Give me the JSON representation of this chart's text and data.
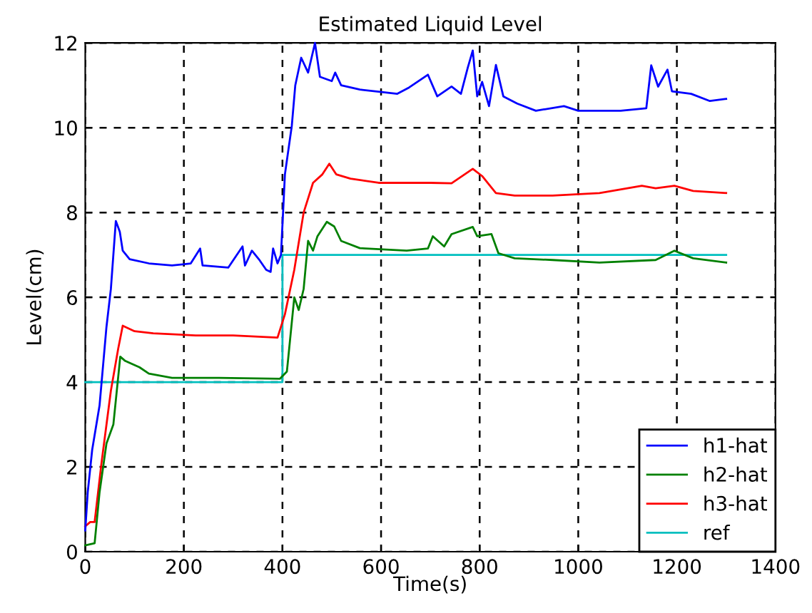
{
  "chart_data": {
    "type": "line",
    "title": "Estimated Liquid Level",
    "xlabel": "Time(s)",
    "ylabel": "Level(cm)",
    "xlim": [
      0,
      1400
    ],
    "ylim": [
      0,
      12
    ],
    "xticks": [
      0,
      200,
      400,
      600,
      800,
      1000,
      1200,
      1400
    ],
    "yticks": [
      0,
      2,
      4,
      6,
      8,
      10,
      12
    ],
    "grid": true,
    "legend": "bottom right",
    "line_style": "solid",
    "series": [
      {
        "name": "h1-hat",
        "color": "#0000ff",
        "x": [
          0,
          5,
          14,
          29,
          43,
          52,
          62,
          70,
          76,
          90,
          129,
          176,
          214,
          233,
          238,
          290,
          319,
          324,
          338,
          352,
          367,
          376,
          381,
          390,
          397,
          405,
          419,
          426,
          438,
          452,
          466,
          476,
          500,
          507,
          519,
          557,
          595,
          633,
          657,
          695,
          714,
          743,
          762,
          776,
          786,
          795,
          805,
          819,
          833,
          848,
          876,
          914,
          971,
          1000,
          1086,
          1138,
          1148,
          1162,
          1181,
          1190,
          1229,
          1267,
          1300
        ],
        "values": [
          0.5,
          1.4,
          2.4,
          3.45,
          5.3,
          6.2,
          7.8,
          7.55,
          7.1,
          6.9,
          6.8,
          6.75,
          6.8,
          7.15,
          6.75,
          6.7,
          7.2,
          6.75,
          7.1,
          6.9,
          6.65,
          6.6,
          7.15,
          6.8,
          7.0,
          8.9,
          10.05,
          11.0,
          11.65,
          11.3,
          12.0,
          11.2,
          11.1,
          11.3,
          11.0,
          10.9,
          10.85,
          10.8,
          10.95,
          11.25,
          10.74,
          10.97,
          10.8,
          11.42,
          11.82,
          10.74,
          11.08,
          10.51,
          11.48,
          10.74,
          10.57,
          10.4,
          10.51,
          10.4,
          10.4,
          10.46,
          11.47,
          10.97,
          11.37,
          10.86,
          10.8,
          10.63,
          10.68
        ]
      },
      {
        "name": "h2-hat",
        "color": "#008000",
        "x": [
          0,
          19,
          29,
          43,
          57,
          71,
          81,
          110,
          129,
          176,
          271,
          395,
          409,
          424,
          433,
          443,
          452,
          462,
          471,
          490,
          505,
          519,
          557,
          652,
          695,
          705,
          728,
          743,
          786,
          795,
          824,
          838,
          871,
          948,
          1043,
          1157,
          1195,
          1233,
          1300
        ],
        "values": [
          0.15,
          0.2,
          1.4,
          2.55,
          3.0,
          4.6,
          4.5,
          4.35,
          4.2,
          4.1,
          4.1,
          4.08,
          4.25,
          6.0,
          5.7,
          6.2,
          7.33,
          7.1,
          7.44,
          7.78,
          7.67,
          7.33,
          7.16,
          7.1,
          7.15,
          7.44,
          7.2,
          7.49,
          7.66,
          7.44,
          7.49,
          7.04,
          6.92,
          6.88,
          6.82,
          6.88,
          7.1,
          6.92,
          6.82
        ]
      },
      {
        "name": "h3-hat",
        "color": "#ff0000",
        "x": [
          0,
          10,
          19,
          33,
          52,
          67,
          76,
          100,
          138,
          224,
          300,
          390,
          405,
          424,
          443,
          462,
          481,
          495,
          509,
          538,
          595,
          700,
          743,
          786,
          805,
          833,
          871,
          948,
          1043,
          1129,
          1157,
          1195,
          1233,
          1300
        ],
        "values": [
          0.6,
          0.7,
          0.7,
          2.1,
          3.8,
          4.8,
          5.33,
          5.2,
          5.15,
          5.1,
          5.1,
          5.05,
          5.6,
          6.65,
          8.0,
          8.7,
          8.9,
          9.15,
          8.9,
          8.8,
          8.7,
          8.7,
          8.69,
          9.03,
          8.86,
          8.46,
          8.4,
          8.4,
          8.46,
          8.63,
          8.57,
          8.63,
          8.51,
          8.46
        ]
      },
      {
        "name": "ref",
        "color": "#00bfbf",
        "x": [
          0,
          400,
          400,
          1300
        ],
        "values": [
          4,
          4,
          7,
          7
        ]
      }
    ]
  }
}
